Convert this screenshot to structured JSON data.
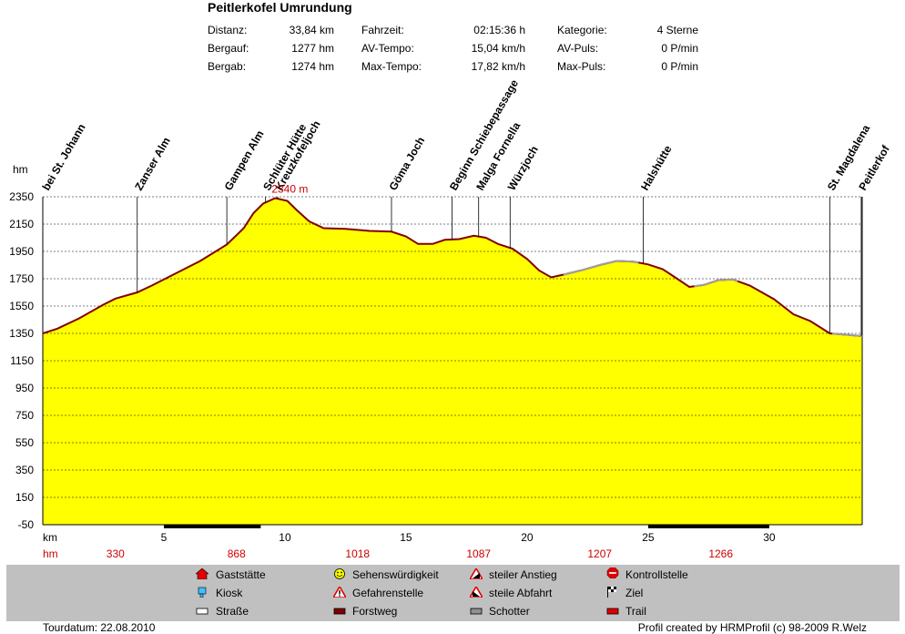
{
  "title": "Peitlerkofel Umrundung",
  "stats": [
    {
      "label": "Distanz:",
      "value": "33,84 km"
    },
    {
      "label": "Bergauf:",
      "value": "1277 hm"
    },
    {
      "label": "Bergab:",
      "value": "1274 hm"
    },
    {
      "label": "Fahrzeit:",
      "value": "02:15:36 h"
    },
    {
      "label": "AV-Tempo:",
      "value": "15,04 km/h"
    },
    {
      "label": "Max-Tempo:",
      "value": "17,82 km/h"
    },
    {
      "label": "Kategorie:",
      "value": "4 Sterne"
    },
    {
      "label": "AV-Puls:",
      "value": "0 P/min"
    },
    {
      "label": "Max-Puls:",
      "value": "0 P/min"
    }
  ],
  "chart_data": {
    "type": "area",
    "ylabel": "hm",
    "xlabel": "km",
    "ylim": [
      -50,
      2350
    ],
    "xlim": [
      0,
      33.84
    ],
    "yticks": [
      2350,
      2150,
      1950,
      1750,
      1550,
      1350,
      1150,
      950,
      750,
      550,
      350,
      150,
      -50
    ],
    "xticks": [
      5,
      10,
      15,
      20,
      25,
      30
    ],
    "max_label": "2340 m",
    "fill_color": "#ffff00",
    "line_color": "#800000",
    "grey_line_color": "#a0a0a0",
    "profile": [
      {
        "x": 0.0,
        "y": 1350
      },
      {
        "x": 0.6,
        "y": 1385
      },
      {
        "x": 1.5,
        "y": 1460
      },
      {
        "x": 2.5,
        "y": 1560
      },
      {
        "x": 3.0,
        "y": 1605
      },
      {
        "x": 3.5,
        "y": 1630
      },
      {
        "x": 3.9,
        "y": 1650
      },
      {
        "x": 4.5,
        "y": 1700
      },
      {
        "x": 5.5,
        "y": 1790
      },
      {
        "x": 6.5,
        "y": 1880
      },
      {
        "x": 7.6,
        "y": 2000
      },
      {
        "x": 8.3,
        "y": 2120
      },
      {
        "x": 8.7,
        "y": 2230
      },
      {
        "x": 9.1,
        "y": 2300
      },
      {
        "x": 9.6,
        "y": 2340
      },
      {
        "x": 10.1,
        "y": 2320
      },
      {
        "x": 10.5,
        "y": 2250
      },
      {
        "x": 11.0,
        "y": 2170
      },
      {
        "x": 11.6,
        "y": 2120
      },
      {
        "x": 12.5,
        "y": 2115
      },
      {
        "x": 13.5,
        "y": 2100
      },
      {
        "x": 14.4,
        "y": 2095
      },
      {
        "x": 15.0,
        "y": 2060
      },
      {
        "x": 15.5,
        "y": 2005
      },
      {
        "x": 16.1,
        "y": 2005
      },
      {
        "x": 16.6,
        "y": 2035
      },
      {
        "x": 17.2,
        "y": 2040
      },
      {
        "x": 17.8,
        "y": 2065
      },
      {
        "x": 18.3,
        "y": 2050
      },
      {
        "x": 18.8,
        "y": 2005
      },
      {
        "x": 19.4,
        "y": 1970
      },
      {
        "x": 20.0,
        "y": 1895
      },
      {
        "x": 20.5,
        "y": 1810
      },
      {
        "x": 21.0,
        "y": 1760
      },
      {
        "x": 21.5,
        "y": 1780
      },
      {
        "x": 22.3,
        "y": 1815
      },
      {
        "x": 23.0,
        "y": 1850
      },
      {
        "x": 23.7,
        "y": 1880
      },
      {
        "x": 24.4,
        "y": 1875
      },
      {
        "x": 25.0,
        "y": 1855
      },
      {
        "x": 25.6,
        "y": 1820
      },
      {
        "x": 26.2,
        "y": 1750
      },
      {
        "x": 26.7,
        "y": 1690
      },
      {
        "x": 27.3,
        "y": 1705
      },
      {
        "x": 27.9,
        "y": 1740
      },
      {
        "x": 28.5,
        "y": 1745
      },
      {
        "x": 29.2,
        "y": 1700
      },
      {
        "x": 30.2,
        "y": 1600
      },
      {
        "x": 31.0,
        "y": 1490
      },
      {
        "x": 31.7,
        "y": 1440
      },
      {
        "x": 32.5,
        "y": 1350
      },
      {
        "x": 33.2,
        "y": 1340
      },
      {
        "x": 33.84,
        "y": 1330
      }
    ],
    "grey_segments": [
      [
        21.5,
        24.6
      ],
      [
        26.9,
        28.7
      ],
      [
        32.6,
        33.84
      ]
    ],
    "waypoints": [
      {
        "name": "bei St. Johann",
        "x": 0.0
      },
      {
        "name": "Zanser Alm",
        "x": 3.9
      },
      {
        "name": "Gampen Alm",
        "x": 7.6
      },
      {
        "name": "Schlüter Hütte",
        "x": 9.2
      },
      {
        "name": "Kreuzkofeljoch",
        "x": 9.7
      },
      {
        "name": "Göma Joch",
        "x": 14.4
      },
      {
        "name": "Beginn Schiebepassage",
        "x": 16.9
      },
      {
        "name": "Malga Fornella",
        "x": 18.0
      },
      {
        "name": "Würzjoch",
        "x": 19.3
      },
      {
        "name": "Halshütte",
        "x": 24.8
      },
      {
        "name": "St. Magdalena",
        "x": 32.5
      },
      {
        "name": "Peitlerkof",
        "x": 33.8
      }
    ],
    "hm_row": [
      {
        "x": 3.0,
        "label": "330"
      },
      {
        "x": 8.0,
        "label": "868"
      },
      {
        "x": 13.0,
        "label": "1018"
      },
      {
        "x": 18.0,
        "label": "1087"
      },
      {
        "x": 23.0,
        "label": "1207"
      },
      {
        "x": 28.0,
        "label": "1266"
      }
    ],
    "hm_row_label": "hm",
    "hm_row_color": "#cc0000",
    "black_bars": [
      [
        5.0,
        9.0
      ],
      [
        25.0,
        30.0
      ]
    ]
  },
  "legend": [
    {
      "label": "Gaststätte",
      "icon": "house-icon"
    },
    {
      "label": "Kiosk",
      "icon": "kiosk-icon"
    },
    {
      "label": "Straße",
      "icon": "road-icon"
    },
    {
      "label": "Sehenswürdigkeit",
      "icon": "smiley-icon"
    },
    {
      "label": "Gefahrenstelle",
      "icon": "warning-icon"
    },
    {
      "label": "Forstweg",
      "icon": "forest-road-icon"
    },
    {
      "label": "steiler Anstieg",
      "icon": "steep-climb-icon"
    },
    {
      "label": "steile Abfahrt",
      "icon": "steep-descent-icon"
    },
    {
      "label": "Schotter",
      "icon": "gravel-icon"
    },
    {
      "label": "Kontrollstelle",
      "icon": "stop-icon"
    },
    {
      "label": "Ziel",
      "icon": "finish-flag-icon"
    },
    {
      "label": "Trail",
      "icon": "trail-icon"
    }
  ],
  "footer": {
    "left": "Tourdatum: 22.08.2010",
    "right": "Profil created by HRMProfil (c) 98-2009 R.Welz"
  }
}
